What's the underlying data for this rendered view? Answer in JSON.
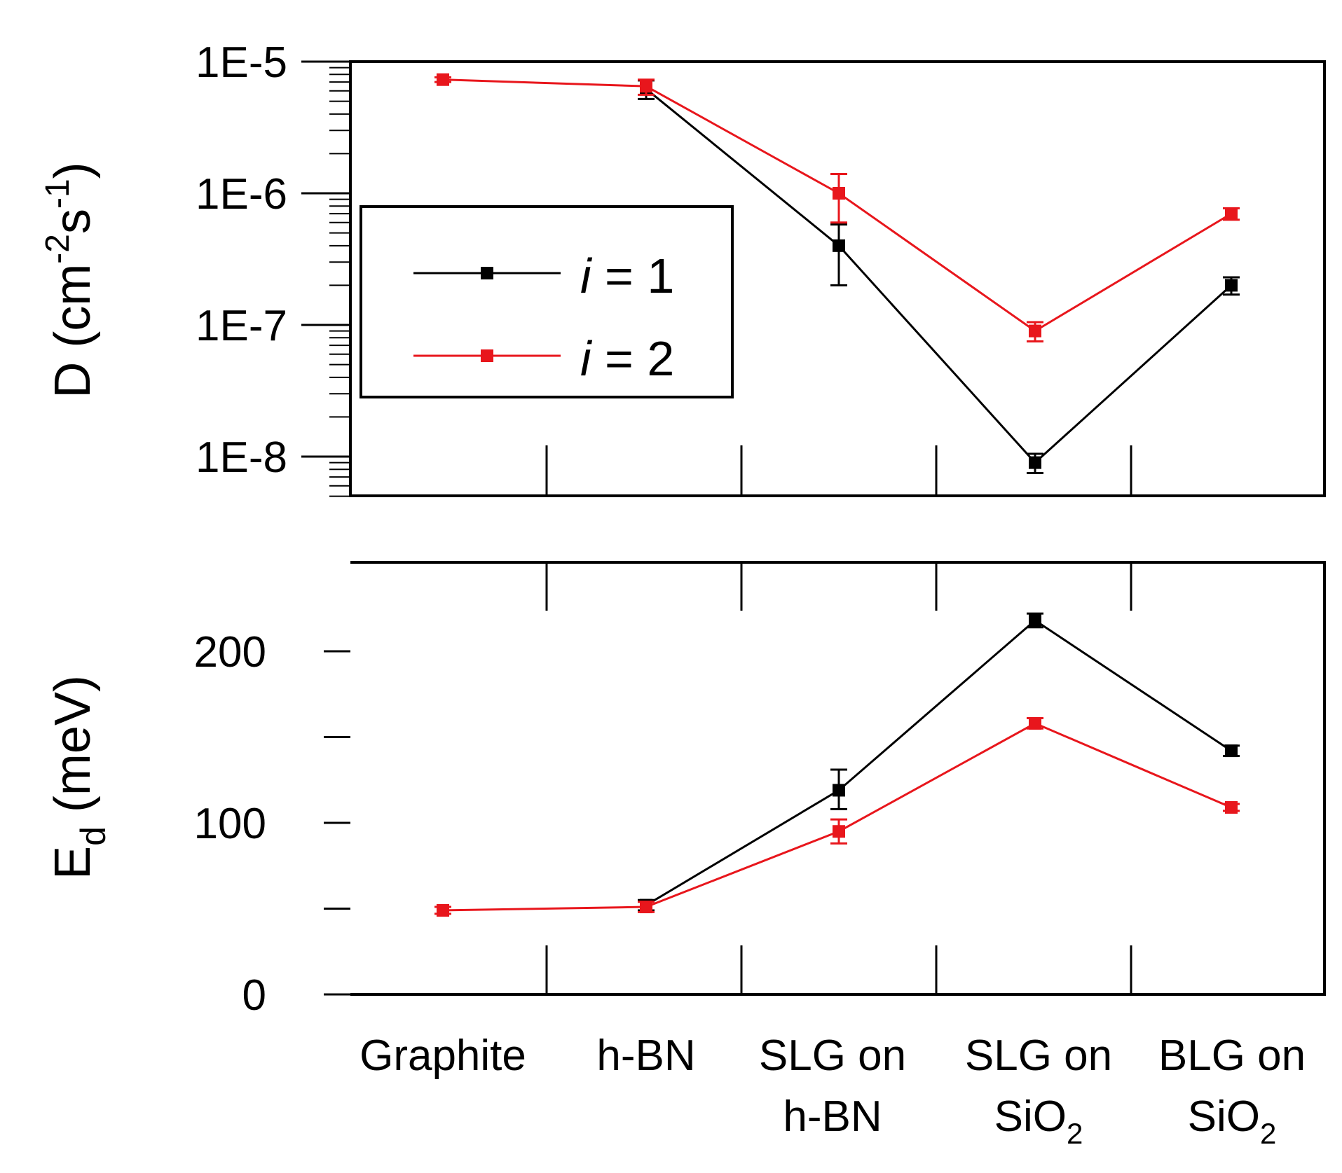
{
  "chart_data": [
    {
      "type": "line",
      "panel": "top",
      "scale": "log",
      "ylabel": {
        "base": "D (cm",
        "sup1": "-2",
        "mid": "s",
        "sup2": "-1",
        "end": ")"
      },
      "categories": [
        "Graphite",
        "h-BN",
        "SLG on h-BN",
        "SLG on SiO2",
        "BLG on SiO2"
      ],
      "ylim": [
        5e-09,
        1e-05
      ],
      "yticks": [
        1e-08,
        1e-07,
        1e-06,
        1e-05
      ],
      "ytick_labels": [
        "1E-8",
        "1E-7",
        "1E-6",
        "1E-5"
      ],
      "series": [
        {
          "name": "i = 1",
          "color": "#000000",
          "values": [
            null,
            6.2e-06,
            4e-07,
            9e-09,
            2e-07
          ],
          "err_low": [
            null,
            5.2e-06,
            2e-07,
            7.5e-09,
            1.7e-07
          ],
          "err_high": [
            null,
            7.2e-06,
            5.8e-07,
            1.05e-08,
            2.3e-07
          ]
        },
        {
          "name": "i = 2",
          "color": "#e8161c",
          "values": [
            7.3e-06,
            6.5e-06,
            1e-06,
            9e-08,
            7e-07
          ],
          "err_low": [
            7e-06,
            5.6e-06,
            6e-07,
            7.5e-08,
            6.3e-07
          ],
          "err_high": [
            7.6e-06,
            7.3e-06,
            1.4e-06,
            1.05e-07,
            7.7e-07
          ]
        }
      ]
    },
    {
      "type": "line",
      "panel": "bottom",
      "scale": "linear",
      "ylabel": {
        "base": "E",
        "sub": "d",
        "end": " (meV)"
      },
      "categories": [
        "Graphite",
        "h-BN",
        "SLG on h-BN",
        "SLG on SiO2",
        "BLG on SiO2"
      ],
      "ylim": [
        0,
        250
      ],
      "yticks": [
        0,
        50,
        100,
        150,
        200
      ],
      "ytick_labels": [
        "0",
        "",
        "100",
        "",
        "200"
      ],
      "series": [
        {
          "name": "i = 1",
          "color": "#000000",
          "values": [
            null,
            52,
            119,
            218,
            142
          ],
          "err_low": [
            null,
            49,
            108,
            214,
            139
          ],
          "err_high": [
            null,
            55,
            131,
            222,
            145
          ]
        },
        {
          "name": "i = 2",
          "color": "#e8161c",
          "values": [
            49,
            51,
            95,
            158,
            109
          ],
          "err_low": [
            47,
            48,
            88,
            155,
            107
          ],
          "err_high": [
            51,
            54,
            102,
            161,
            111
          ]
        }
      ]
    }
  ],
  "legend": {
    "entries": [
      {
        "label": "i",
        "rest": " = 1",
        "color": "#000000"
      },
      {
        "label": "i",
        "rest": " = 2",
        "color": "#e8161c"
      }
    ]
  },
  "x_labels": [
    {
      "line1": "Graphite",
      "line2": "",
      "sub": ""
    },
    {
      "line1": "h-BN",
      "line2": "",
      "sub": ""
    },
    {
      "line1": "SLG on",
      "line2": "h-BN",
      "sub": ""
    },
    {
      "line1": "SLG on",
      "line2": "SiO",
      "sub": "2"
    },
    {
      "line1": "BLG on",
      "line2": "SiO",
      "sub": "2"
    }
  ]
}
